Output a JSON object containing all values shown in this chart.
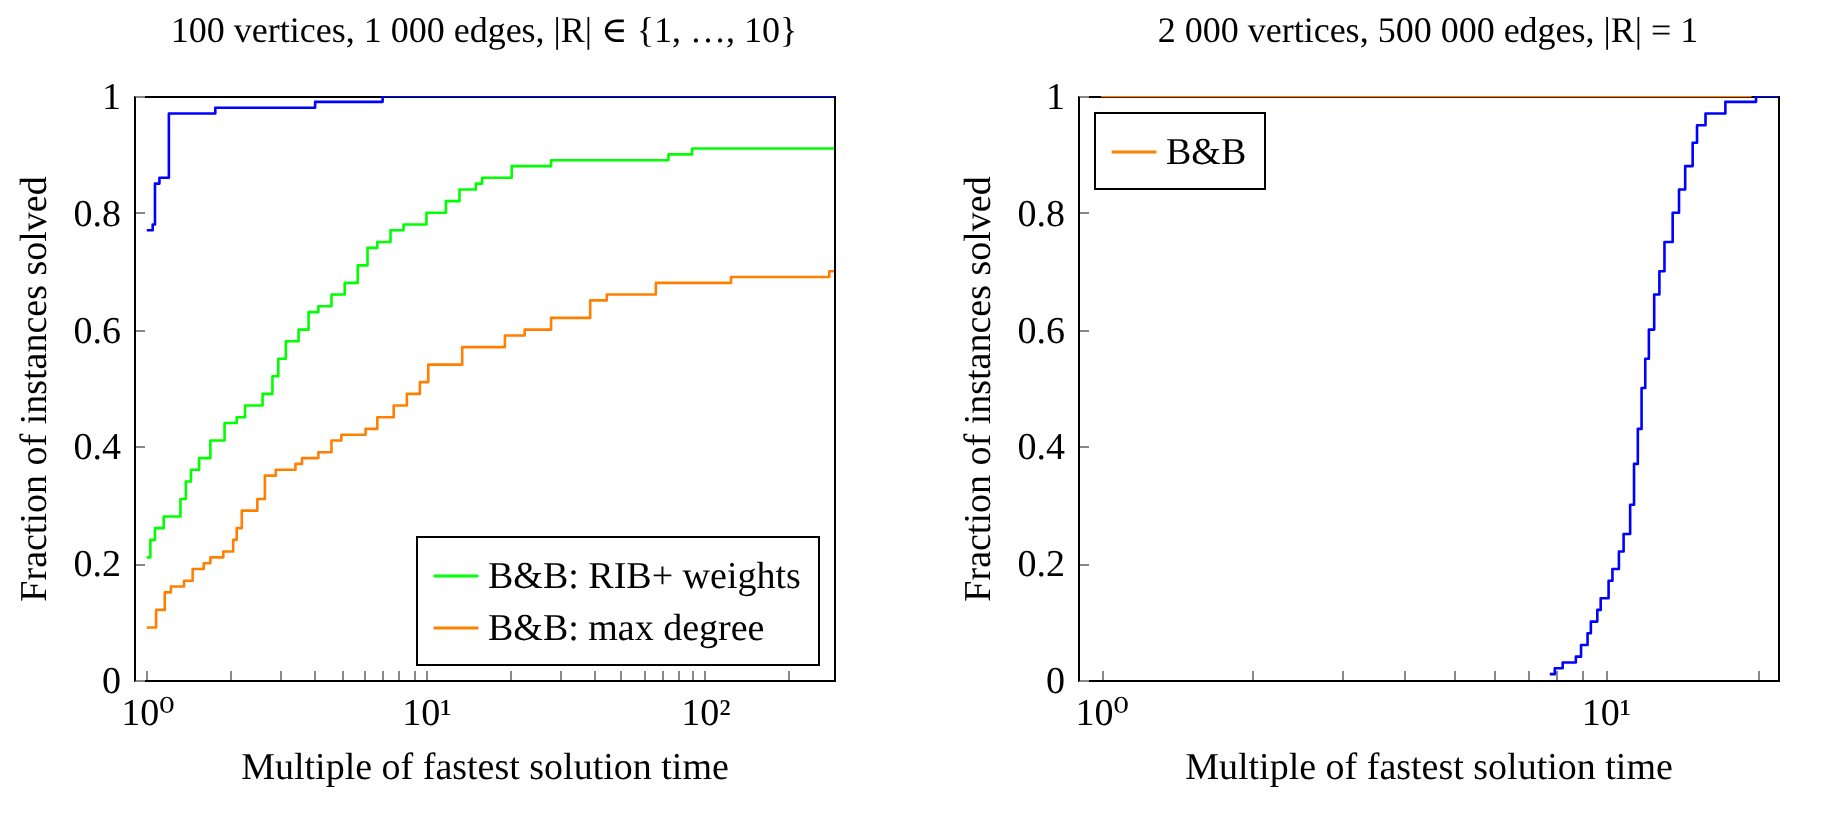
{
  "chart_data": [
    {
      "type": "step",
      "title": "100 vertices, 1 000 edges, |R| ∈ {1, …, 10}",
      "xlabel": "Multiple of fastest solution time",
      "ylabel": "Fraction of instances solved",
      "log": "x",
      "xlim": [
        0.9,
        290
      ],
      "ylim": [
        0,
        1
      ],
      "xticks": [
        {
          "value": 1,
          "label": "10⁰"
        },
        {
          "value": 2,
          "label": null
        },
        {
          "value": 3,
          "label": null
        },
        {
          "value": 4,
          "label": null
        },
        {
          "value": 5,
          "label": null
        },
        {
          "value": 6,
          "label": null
        },
        {
          "value": 7,
          "label": null
        },
        {
          "value": 8,
          "label": null
        },
        {
          "value": 9,
          "label": null
        },
        {
          "value": 10,
          "label": "10¹"
        },
        {
          "value": 20,
          "label": null
        },
        {
          "value": 30,
          "label": null
        },
        {
          "value": 40,
          "label": null
        },
        {
          "value": 50,
          "label": null
        },
        {
          "value": 60,
          "label": null
        },
        {
          "value": 70,
          "label": null
        },
        {
          "value": 80,
          "label": null
        },
        {
          "value": 90,
          "label": null
        },
        {
          "value": 100,
          "label": "10²"
        },
        {
          "value": 200,
          "label": null
        }
      ],
      "yticks": [
        0,
        0.2,
        0.4,
        0.6,
        0.8,
        1
      ],
      "legend": "bottom right",
      "series": [
        {
          "name": "B&B: RIB+ weights",
          "color": "#00ff00",
          "x": [
            1,
            1.03,
            1.07,
            1.15,
            1.32,
            1.38,
            1.44,
            1.54,
            1.69,
            1.9,
            2.1,
            2.25,
            2.6,
            2.82,
            2.96,
            3.15,
            3.5,
            3.8,
            4.12,
            4.59,
            5.12,
            5.7,
            6.18,
            6.7,
            7.47,
            8.32,
            10.05,
            11.8,
            13.2,
            15.1,
            15.9,
            20.3,
            28.1,
            74,
            90,
            290
          ],
          "values": [
            0.21,
            0.24,
            0.26,
            0.28,
            0.31,
            0.34,
            0.36,
            0.38,
            0.41,
            0.44,
            0.45,
            0.47,
            0.49,
            0.52,
            0.55,
            0.58,
            0.6,
            0.63,
            0.64,
            0.66,
            0.68,
            0.71,
            0.74,
            0.75,
            0.77,
            0.78,
            0.8,
            0.82,
            0.84,
            0.85,
            0.86,
            0.88,
            0.89,
            0.9,
            0.91,
            0.91
          ]
        },
        {
          "name": "B&B: max degree",
          "color": "#ff8000",
          "x": [
            1,
            1.08,
            1.16,
            1.22,
            1.36,
            1.46,
            1.6,
            1.69,
            1.88,
            2.04,
            2.1,
            2.19,
            2.49,
            2.65,
            2.9,
            3.41,
            3.6,
            4.12,
            4.59,
            4.98,
            6.08,
            6.7,
            7.67,
            8.55,
            9.52,
            10.2,
            13.5,
            19.2,
            22.6,
            28.1,
            38.8,
            44.5,
            66.7,
            124,
            279,
            290
          ],
          "values": [
            0.09,
            0.12,
            0.15,
            0.16,
            0.17,
            0.19,
            0.2,
            0.21,
            0.22,
            0.24,
            0.26,
            0.29,
            0.31,
            0.35,
            0.36,
            0.37,
            0.38,
            0.39,
            0.41,
            0.42,
            0.43,
            0.45,
            0.47,
            0.49,
            0.51,
            0.54,
            0.57,
            0.59,
            0.6,
            0.62,
            0.65,
            0.66,
            0.68,
            0.69,
            0.7,
            0.7
          ]
        },
        {
          "color": "#0000ff",
          "x": [
            1,
            1.05,
            1.07,
            1.11,
            1.2,
            1.76,
            4.01,
            7,
            290
          ],
          "values": [
            0.77,
            0.78,
            0.85,
            0.86,
            0.97,
            0.98,
            0.99,
            1,
            1
          ]
        }
      ]
    },
    {
      "type": "step",
      "title": "2 000 vertices, 500 000 edges, |R| = 1",
      "xlabel": "Multiple of fastest solution time",
      "ylabel": "Fraction of instances solved",
      "log": "x",
      "xlim": [
        0.9,
        22
      ],
      "ylim": [
        0,
        1
      ],
      "xticks": [
        {
          "value": 1,
          "label": "10⁰"
        },
        {
          "value": 2,
          "label": null
        },
        {
          "value": 3,
          "label": null
        },
        {
          "value": 4,
          "label": null
        },
        {
          "value": 5,
          "label": null
        },
        {
          "value": 6,
          "label": null
        },
        {
          "value": 7,
          "label": null
        },
        {
          "value": 8,
          "label": null
        },
        {
          "value": 9,
          "label": null
        },
        {
          "value": 10,
          "label": "10¹"
        },
        {
          "value": 20,
          "label": null
        }
      ],
      "yticks": [
        0,
        0.2,
        0.4,
        0.6,
        0.8,
        1
      ],
      "legend": "top left",
      "series": [
        {
          "name": "B&B",
          "color": "#ff8000",
          "x": [
            1,
            19.5
          ],
          "values": [
            1,
            1
          ]
        },
        {
          "color": "#0000ff",
          "x": [
            7.76,
            7.94,
            8.23,
            8.74,
            8.95,
            9.22,
            9.36,
            9.64,
            9.79,
            10.15,
            10.33,
            10.64,
            10.87,
            11.2,
            11.4,
            11.6,
            11.8,
            12,
            12.2,
            12.5,
            12.8,
            13.1,
            13.6,
            14,
            14.4,
            14.9,
            15.2,
            15.8,
            17.3,
            19.9,
            22
          ],
          "values": [
            0.01,
            0.02,
            0.03,
            0.04,
            0.06,
            0.08,
            0.1,
            0.12,
            0.14,
            0.17,
            0.19,
            0.22,
            0.25,
            0.3,
            0.37,
            0.43,
            0.5,
            0.55,
            0.6,
            0.66,
            0.7,
            0.75,
            0.8,
            0.84,
            0.88,
            0.92,
            0.95,
            0.97,
            0.99,
            1,
            1
          ]
        }
      ]
    }
  ]
}
